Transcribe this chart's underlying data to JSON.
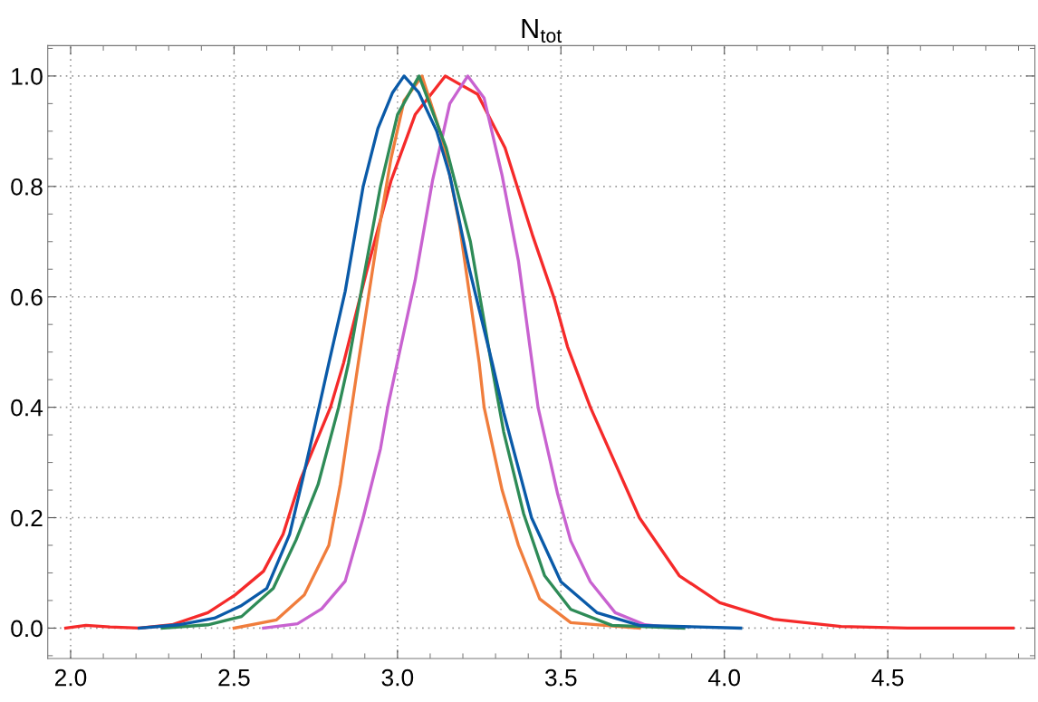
{
  "chart_data": {
    "type": "line",
    "title": "N$_{tot}$",
    "xlim": [
      1.93,
      4.95
    ],
    "ylim": [
      -0.055,
      1.055
    ],
    "xticks": [
      {
        "value": 2.0,
        "label": "2.0"
      },
      2.5,
      {
        "value": 3.0,
        "label": "3.0"
      },
      3.5,
      {
        "value": 4.0,
        "label": "4.0"
      },
      4.5
    ],
    "yticks": [
      {
        "value": 0.0,
        "label": "0.0"
      },
      0.2,
      0.4,
      0.6,
      0.8,
      {
        "value": 1.0,
        "label": "1.0"
      }
    ],
    "grid": true,
    "marker": "none",
    "line_style": "solid",
    "series": [
      {
        "color": "#f52a2a",
        "x": [
          1.985,
          2.047,
          2.12,
          2.21,
          2.31,
          2.42,
          2.503,
          2.59,
          2.65,
          2.704,
          2.795,
          2.835,
          2.905,
          2.98,
          3.054,
          3.146,
          3.245,
          3.329,
          3.414,
          3.48,
          3.52,
          3.59,
          3.74,
          3.862,
          3.986,
          4.15,
          4.357,
          4.56,
          4.883
        ],
        "values": [
          0,
          0.005,
          0.002,
          0,
          0.006,
          0.028,
          0.06,
          0.103,
          0.17,
          0.27,
          0.4,
          0.48,
          0.645,
          0.81,
          0.93,
          1.0,
          0.967,
          0.87,
          0.71,
          0.596,
          0.51,
          0.4,
          0.2,
          0.095,
          0.046,
          0.016,
          0.003,
          0,
          0
        ]
      },
      {
        "color": "#c862d0",
        "x": [
          2.59,
          2.694,
          2.768,
          2.84,
          2.895,
          2.948,
          2.97,
          2.999,
          3.054,
          3.107,
          3.16,
          3.215,
          3.265,
          3.32,
          3.37,
          3.405,
          3.43,
          3.49,
          3.53,
          3.59,
          3.666,
          3.757,
          3.857
        ],
        "values": [
          0,
          0.008,
          0.035,
          0.085,
          0.2,
          0.325,
          0.4,
          0.48,
          0.63,
          0.81,
          0.95,
          1.0,
          0.96,
          0.82,
          0.665,
          0.51,
          0.4,
          0.243,
          0.158,
          0.084,
          0.028,
          0.006,
          0
        ]
      },
      {
        "color": "#f07d3c",
        "x": [
          2.5,
          2.63,
          2.715,
          2.79,
          2.825,
          2.86,
          2.88,
          2.937,
          2.98,
          3.02,
          3.075,
          3.138,
          3.19,
          3.25,
          3.265,
          3.32,
          3.37,
          3.435,
          3.45,
          3.53,
          3.74
        ],
        "values": [
          0,
          0.015,
          0.06,
          0.15,
          0.26,
          0.4,
          0.48,
          0.7,
          0.85,
          0.955,
          1.0,
          0.885,
          0.73,
          0.48,
          0.4,
          0.25,
          0.15,
          0.053,
          0.046,
          0.01,
          0
        ]
      },
      {
        "color": "#2e8b57",
        "x": [
          2.28,
          2.42,
          2.523,
          2.62,
          2.69,
          2.757,
          2.82,
          2.85,
          2.895,
          2.948,
          3.0,
          3.066,
          3.149,
          3.223,
          3.287,
          3.325,
          3.386,
          3.45,
          3.53,
          3.656,
          3.876
        ],
        "values": [
          0,
          0.006,
          0.021,
          0.072,
          0.16,
          0.26,
          0.4,
          0.48,
          0.63,
          0.8,
          0.93,
          1.0,
          0.87,
          0.7,
          0.48,
          0.355,
          0.207,
          0.095,
          0.034,
          0.005,
          0
        ]
      },
      {
        "color": "#0a5aa8",
        "x": [
          2.21,
          2.33,
          2.44,
          2.52,
          2.6,
          2.67,
          2.71,
          2.76,
          2.79,
          2.84,
          2.895,
          2.94,
          2.985,
          3.02,
          3.065,
          3.12,
          3.16,
          3.22,
          3.29,
          3.325,
          3.41,
          3.5,
          3.61,
          3.74,
          4.05
        ],
        "values": [
          0,
          0.006,
          0.018,
          0.04,
          0.072,
          0.17,
          0.27,
          0.4,
          0.48,
          0.61,
          0.8,
          0.905,
          0.97,
          1.0,
          0.97,
          0.9,
          0.82,
          0.65,
          0.48,
          0.39,
          0.2,
          0.084,
          0.028,
          0.005,
          0
        ]
      }
    ]
  }
}
